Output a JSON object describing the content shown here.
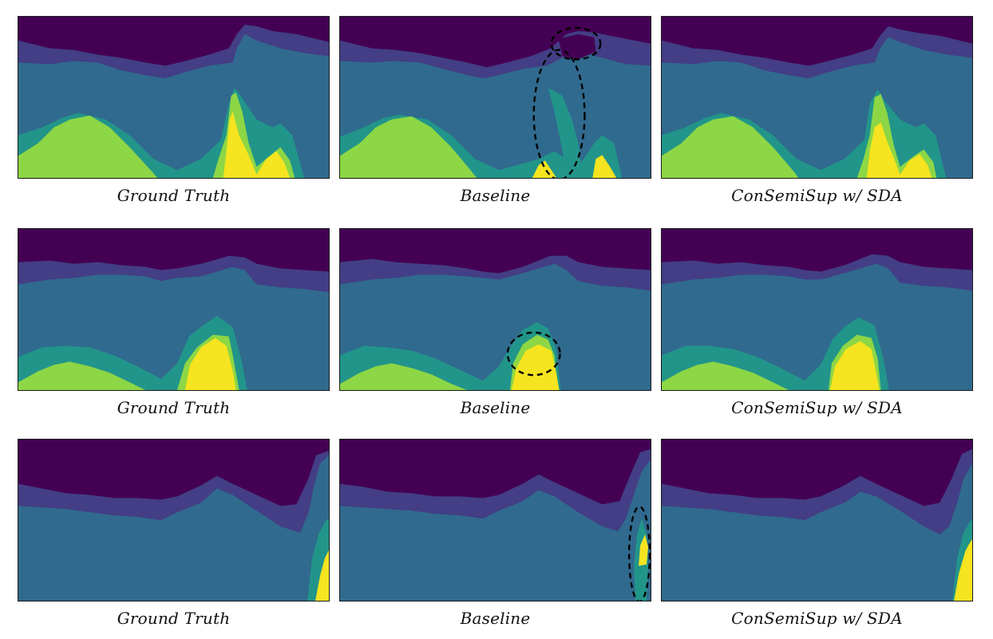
{
  "figure": {
    "rows": [
      {
        "panels": [
          {
            "caption": "Ground Truth",
            "variant": "gt1",
            "highlights": 0
          },
          {
            "caption": "Baseline",
            "variant": "bl1",
            "highlights": 2
          },
          {
            "caption": "ConSemiSup w/ SDA",
            "variant": "cs1",
            "highlights": 0
          }
        ]
      },
      {
        "panels": [
          {
            "caption": "Ground Truth",
            "variant": "gt2",
            "highlights": 0
          },
          {
            "caption": "Baseline",
            "variant": "bl2",
            "highlights": 1
          },
          {
            "caption": "ConSemiSup w/ SDA",
            "variant": "cs2",
            "highlights": 0
          }
        ]
      },
      {
        "panels": [
          {
            "caption": "Ground Truth",
            "variant": "gt3",
            "highlights": 0
          },
          {
            "caption": "Baseline",
            "variant": "bl3",
            "highlights": 1
          },
          {
            "caption": "ConSemiSup w/ SDA",
            "variant": "cs3",
            "highlights": 0
          }
        ]
      }
    ],
    "palette": {
      "class0": "#440154",
      "class1": "#433e85",
      "class2": "#306a8e",
      "class3": "#22958a",
      "class4": "#8dd645",
      "class5": "#f5e41f",
      "highlight": "#000000"
    }
  }
}
